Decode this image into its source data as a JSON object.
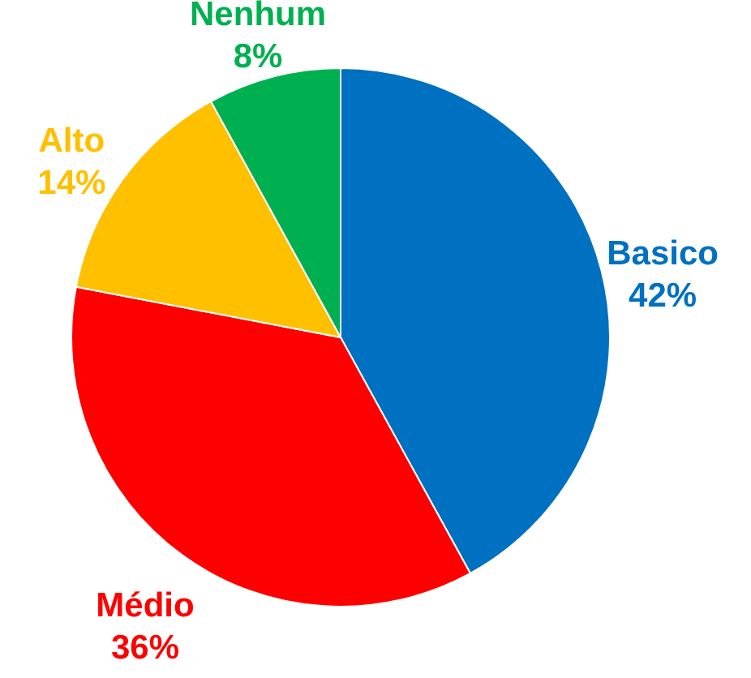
{
  "chart_data": {
    "type": "pie",
    "categories": [
      "Basico",
      "Médio",
      "Alto",
      "Nenhum"
    ],
    "values": [
      42,
      36,
      14,
      8
    ],
    "colors": [
      "#0070c0",
      "#ff0000",
      "#ffc000",
      "#00b050"
    ],
    "value_labels": [
      "42%",
      "36%",
      "14%",
      "8%"
    ]
  }
}
